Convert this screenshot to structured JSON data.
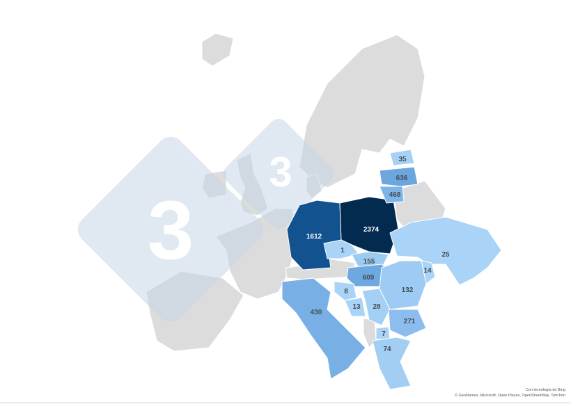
{
  "map": {
    "colors": {
      "land": "#dcdcdc",
      "min": "#a9d3f7",
      "max": "#032a4f",
      "watermark": "#c8d6e8"
    },
    "regions": [
      {
        "id": "germany",
        "value": 1612,
        "color": "#12528f"
      },
      {
        "id": "poland",
        "value": 2374,
        "color": "#032a4f"
      },
      {
        "id": "czechia",
        "value": 1,
        "color": "#a9d3f7"
      },
      {
        "id": "slovakia",
        "value": 155,
        "color": "#9ccbf2"
      },
      {
        "id": "hungary",
        "value": 609,
        "color": "#6ea8e0"
      },
      {
        "id": "ukraine",
        "value": 25,
        "color": "#a9d3f7"
      },
      {
        "id": "moldova",
        "value": 14,
        "color": "#a9d3f7"
      },
      {
        "id": "romania",
        "value": 132,
        "color": "#9dcbf3"
      },
      {
        "id": "croatia",
        "value": 8,
        "color": "#a9d3f7"
      },
      {
        "id": "bosnia",
        "value": 13,
        "color": "#a9d3f7"
      },
      {
        "id": "serbia",
        "value": 28,
        "color": "#a5d0f5"
      },
      {
        "id": "bulgaria",
        "value": 271,
        "color": "#8cbdee"
      },
      {
        "id": "north-macedonia",
        "value": 7,
        "color": "#a9d3f7"
      },
      {
        "id": "greece",
        "value": 74,
        "color": "#a2cef4"
      },
      {
        "id": "italy",
        "value": 430,
        "color": "#78b0e6"
      },
      {
        "id": "estonia",
        "value": 35,
        "color": "#a6d1f5"
      },
      {
        "id": "latvia",
        "value": 636,
        "color": "#6ca6df"
      },
      {
        "id": "lithuania",
        "value": 468,
        "color": "#7eb5e8"
      }
    ]
  },
  "watermark": {
    "glyph": "3"
  },
  "attribution": {
    "line1": "Con tecnología de Bing",
    "line2": "© GeoNames, Microsoft, Open Places, OpenStreetMap, TomTom"
  }
}
